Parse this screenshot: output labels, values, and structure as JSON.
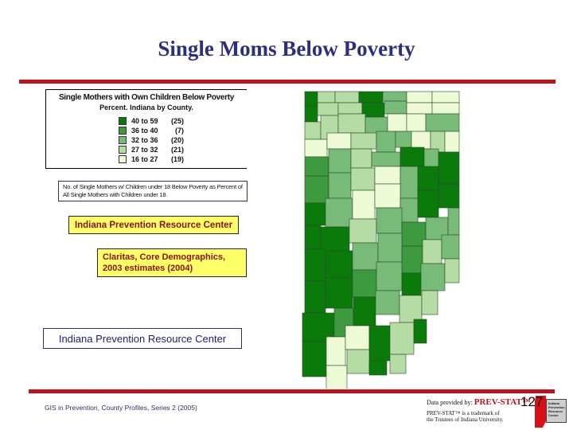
{
  "slide": {
    "title": "Single Moms Below Poverty",
    "accent_color": "#c0101a",
    "title_color": "#2e2e7e"
  },
  "legend": {
    "title": "Single Mothers with Own Children Below Poverty",
    "subtitle": "Percent.  Indiana by County.",
    "classes": [
      {
        "range": "40 to 59",
        "count": "(25)",
        "color": "#0a7a0a"
      },
      {
        "range": "36 to 40",
        "count": "(7)",
        "color": "#3e9a3e"
      },
      {
        "range": "32 to 36",
        "count": "(20)",
        "color": "#78bb78"
      },
      {
        "range": "27 to 32",
        "count": "(21)",
        "color": "#b4dca4"
      },
      {
        "range": "16 to 27",
        "count": "(19)",
        "color": "#eefad6"
      }
    ]
  },
  "note": {
    "text": "No. of Single Mothers w/ Children under 18 Below Poverty as Percent of All Single Mothers with Children under 18."
  },
  "boxes": {
    "iprc_yellow": "Indiana Prevention Resource Center",
    "source": "Claritas, Core Demographics, 2003 estimates (2004)",
    "iprc_blue": "Indiana Prevention Resource Center"
  },
  "footer": {
    "left": "GIS in Prevention, County Profiles, Series 2 (2005)",
    "provided_by": "Data provided by:",
    "brand": "PREV-STAT™",
    "trademark_line1": "PREV-STAT™ is a trademark of",
    "trademark_line2": "the Trustees of Indiana University.",
    "page_number": "127",
    "logo_text": "Indiana Prevention Resource Center"
  },
  "map": {
    "description": "Indiana county choropleth",
    "counties": [
      [
        43,
        7,
        16,
        18,
        0
      ],
      [
        59,
        7,
        22,
        14,
        3
      ],
      [
        81,
        7,
        30,
        14,
        3
      ],
      [
        111,
        7,
        30,
        14,
        0
      ],
      [
        141,
        7,
        30,
        12,
        2
      ],
      [
        171,
        7,
        32,
        14,
        4
      ],
      [
        203,
        7,
        34,
        14,
        4
      ],
      [
        43,
        25,
        16,
        20,
        0
      ],
      [
        59,
        21,
        26,
        16,
        3
      ],
      [
        85,
        21,
        30,
        14,
        3
      ],
      [
        115,
        21,
        28,
        18,
        0
      ],
      [
        143,
        19,
        28,
        16,
        2
      ],
      [
        171,
        21,
        32,
        14,
        4
      ],
      [
        203,
        21,
        34,
        14,
        4
      ],
      [
        43,
        45,
        20,
        22,
        3
      ],
      [
        63,
        37,
        22,
        30,
        3
      ],
      [
        85,
        35,
        34,
        24,
        3
      ],
      [
        119,
        39,
        28,
        22,
        2
      ],
      [
        147,
        35,
        24,
        22,
        4
      ],
      [
        171,
        35,
        24,
        22,
        4
      ],
      [
        195,
        35,
        42,
        22,
        2
      ],
      [
        43,
        67,
        28,
        22,
        4
      ],
      [
        71,
        59,
        30,
        20,
        4
      ],
      [
        101,
        59,
        32,
        20,
        3
      ],
      [
        133,
        57,
        24,
        26,
        2
      ],
      [
        157,
        57,
        20,
        20,
        2
      ],
      [
        177,
        57,
        24,
        22,
        4
      ],
      [
        201,
        57,
        18,
        26,
        3
      ],
      [
        219,
        57,
        18,
        26,
        4
      ],
      [
        43,
        89,
        30,
        24,
        1
      ],
      [
        73,
        79,
        28,
        30,
        2
      ],
      [
        101,
        79,
        26,
        24,
        3
      ],
      [
        127,
        83,
        36,
        18,
        2
      ],
      [
        163,
        77,
        30,
        24,
        0
      ],
      [
        193,
        79,
        18,
        24,
        2
      ],
      [
        211,
        83,
        26,
        40,
        0
      ],
      [
        43,
        113,
        30,
        34,
        1
      ],
      [
        73,
        109,
        28,
        32,
        2
      ],
      [
        101,
        103,
        30,
        28,
        3
      ],
      [
        131,
        101,
        32,
        22,
        4
      ],
      [
        163,
        101,
        22,
        40,
        2
      ],
      [
        185,
        101,
        26,
        30,
        0
      ],
      [
        43,
        147,
        26,
        28,
        0
      ],
      [
        69,
        141,
        34,
        36,
        2
      ],
      [
        103,
        131,
        28,
        36,
        4
      ],
      [
        131,
        123,
        32,
        30,
        4
      ],
      [
        163,
        141,
        22,
        30,
        2
      ],
      [
        185,
        131,
        26,
        34,
        0
      ],
      [
        211,
        123,
        26,
        30,
        0
      ],
      [
        43,
        175,
        20,
        30,
        0
      ],
      [
        63,
        177,
        36,
        30,
        0
      ],
      [
        99,
        167,
        34,
        30,
        3
      ],
      [
        133,
        153,
        32,
        32,
        2
      ],
      [
        165,
        171,
        30,
        30,
        1
      ],
      [
        195,
        165,
        28,
        28,
        2
      ],
      [
        223,
        153,
        14,
        34,
        2
      ],
      [
        43,
        205,
        26,
        40,
        0
      ],
      [
        69,
        207,
        34,
        34,
        0
      ],
      [
        103,
        197,
        32,
        34,
        2
      ],
      [
        135,
        185,
        30,
        36,
        2
      ],
      [
        165,
        201,
        26,
        34,
        1
      ],
      [
        191,
        193,
        24,
        30,
        3
      ],
      [
        215,
        187,
        22,
        30,
        2
      ],
      [
        43,
        245,
        26,
        40,
        0
      ],
      [
        69,
        241,
        34,
        38,
        0
      ],
      [
        103,
        231,
        30,
        34,
        1
      ],
      [
        133,
        221,
        32,
        36,
        2
      ],
      [
        165,
        235,
        24,
        28,
        0
      ],
      [
        189,
        223,
        30,
        34,
        2
      ],
      [
        219,
        217,
        18,
        30,
        3
      ],
      [
        40,
        285,
        40,
        36,
        0
      ],
      [
        80,
        279,
        24,
        36,
        1
      ],
      [
        104,
        265,
        28,
        36,
        0
      ],
      [
        132,
        257,
        30,
        30,
        2
      ],
      [
        162,
        263,
        28,
        34,
        3
      ],
      [
        190,
        257,
        20,
        30,
        3
      ],
      [
        40,
        321,
        30,
        44,
        0
      ],
      [
        70,
        315,
        24,
        36,
        4
      ],
      [
        94,
        301,
        30,
        30,
        4
      ],
      [
        124,
        301,
        26,
        44,
        0
      ],
      [
        150,
        297,
        30,
        40,
        3
      ],
      [
        180,
        293,
        16,
        30,
        0
      ],
      [
        70,
        351,
        26,
        30,
        4
      ],
      [
        96,
        331,
        28,
        30,
        3
      ],
      [
        124,
        345,
        22,
        18,
        0
      ],
      [
        150,
        337,
        20,
        24,
        3
      ]
    ]
  }
}
